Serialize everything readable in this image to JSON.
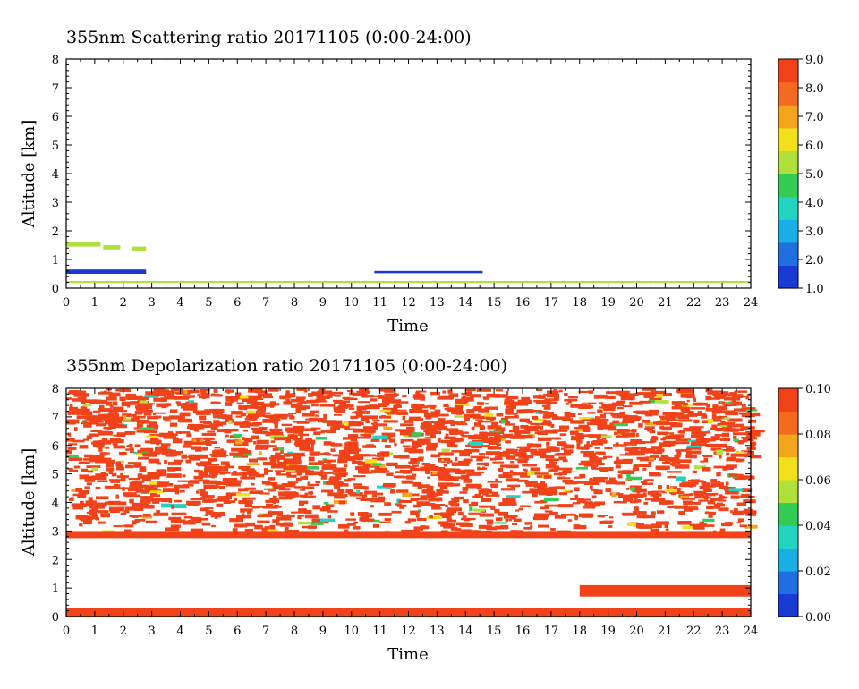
{
  "chart_data": [
    {
      "type": "heatmap",
      "title": "355nm Scattering ratio  20171105 (0:00-24:00)",
      "xlabel": "Time",
      "ylabel": "Altitude [km]",
      "xlim": [
        0,
        24
      ],
      "ylim": [
        0,
        8
      ],
      "x_ticks": [
        "0",
        "1",
        "2",
        "3",
        "4",
        "5",
        "6",
        "7",
        "8",
        "9",
        "10",
        "11",
        "12",
        "13",
        "14",
        "15",
        "16",
        "17",
        "18",
        "19",
        "20",
        "21",
        "22",
        "23",
        "24"
      ],
      "y_ticks": [
        "0",
        "1",
        "2",
        "3",
        "4",
        "5",
        "6",
        "7",
        "8"
      ],
      "colorbar": {
        "min": 1.0,
        "max": 9.0,
        "ticks": [
          "1.0",
          "2.0",
          "3.0",
          "4.0",
          "5.0",
          "6.0",
          "7.0",
          "8.0",
          "9.0"
        ]
      },
      "features": [
        {
          "kind": "cloud",
          "t0": 0.0,
          "t1": 2.8,
          "alt0": 0.5,
          "alt1": 0.65,
          "value": 1.5
        },
        {
          "kind": "cloud",
          "t0": 0.0,
          "t1": 1.2,
          "alt0": 1.45,
          "alt1": 1.6,
          "value": 5.0
        },
        {
          "kind": "cloud",
          "t0": 1.3,
          "t1": 1.9,
          "alt0": 1.35,
          "alt1": 1.5,
          "value": 5.0
        },
        {
          "kind": "cloud",
          "t0": 2.3,
          "t1": 2.8,
          "alt0": 1.3,
          "alt1": 1.45,
          "value": 5.0
        },
        {
          "kind": "cloud",
          "t0": 10.8,
          "t1": 14.6,
          "alt0": 0.52,
          "alt1": 0.6,
          "value": 1.5
        },
        {
          "kind": "near-surface",
          "t0": 0.0,
          "t1": 24.0,
          "alt0": 0.18,
          "alt1": 0.25,
          "value": 5.0
        }
      ]
    },
    {
      "type": "heatmap",
      "title": "355nm Depolarization ratio  20171105 (0:00-24:00)",
      "xlabel": "Time",
      "ylabel": "Altitude [km]",
      "xlim": [
        0,
        24
      ],
      "ylim": [
        0,
        8
      ],
      "x_ticks": [
        "0",
        "1",
        "2",
        "3",
        "4",
        "5",
        "6",
        "7",
        "8",
        "9",
        "10",
        "11",
        "12",
        "13",
        "14",
        "15",
        "16",
        "17",
        "18",
        "19",
        "20",
        "21",
        "22",
        "23",
        "24"
      ],
      "y_ticks": [
        "0",
        "1",
        "2",
        "3",
        "4",
        "5",
        "6",
        "7",
        "8"
      ],
      "colorbar": {
        "min": 0.0,
        "max": 0.1,
        "ticks": [
          "0.00",
          "0.02",
          "0.04",
          "0.06",
          "0.08",
          "0.10"
        ]
      },
      "features": [
        {
          "kind": "noise",
          "t0": 0.0,
          "t1": 24.0,
          "alt0": 3.0,
          "alt1": 8.0,
          "value": 0.1
        },
        {
          "kind": "layer",
          "t0": 0.0,
          "t1": 24.0,
          "alt0": 2.75,
          "alt1": 3.0,
          "value": 0.1
        },
        {
          "kind": "cloud",
          "t0": 18.0,
          "t1": 24.0,
          "alt0": 0.7,
          "alt1": 1.1,
          "value": 0.1
        },
        {
          "kind": "near-surface",
          "t0": 0.0,
          "t1": 24.0,
          "alt0": 0.0,
          "alt1": 0.3,
          "value": 0.1
        }
      ]
    }
  ],
  "colors": {
    "scale": [
      "#1a3ad6",
      "#1e6fe0",
      "#1aaee6",
      "#22d3c2",
      "#33cc55",
      "#b0e03a",
      "#f2e01a",
      "#f5a51a",
      "#f46a1e",
      "#f2421a"
    ]
  }
}
